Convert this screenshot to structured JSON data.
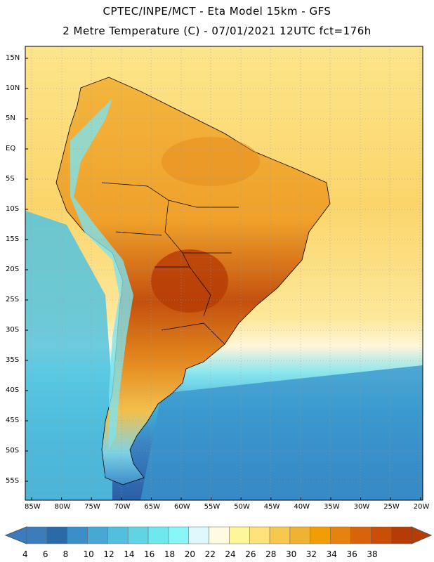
{
  "title_line1": "CPTEC/INPE/MCT -  Eta Model 15km - GFS",
  "title_line2": "2 Metre Temperature (C) - 07/01/2021 12UTC fct=176h",
  "map": {
    "lat_labels": [
      "15N",
      "10N",
      "5N",
      "EQ",
      "5S",
      "10S",
      "15S",
      "20S",
      "25S",
      "30S",
      "35S",
      "40S",
      "45S",
      "50S",
      "55S"
    ],
    "lon_labels": [
      "85W",
      "80W",
      "75W",
      "70W",
      "65W",
      "60W",
      "55W",
      "50W",
      "45W",
      "40W",
      "35W",
      "30W",
      "25W",
      "20W"
    ]
  },
  "legend": {
    "labels": [
      "4",
      "6",
      "8",
      "10",
      "12",
      "14",
      "16",
      "18",
      "20",
      "22",
      "24",
      "26",
      "28",
      "30",
      "32",
      "34",
      "36",
      "38"
    ],
    "colors": [
      "#3a7cbc",
      "#2b6aa6",
      "#3b8fc8",
      "#47a8d6",
      "#52bfdf",
      "#60d4e4",
      "#6ee8ec",
      "#88f6f6",
      "#dff8fb",
      "#fffbe0",
      "#fef79a",
      "#fde27a",
      "#f8c84e",
      "#f0b232",
      "#f39d06",
      "#e6820f",
      "#d9630b",
      "#c94e06",
      "#b63b05"
    ]
  }
}
